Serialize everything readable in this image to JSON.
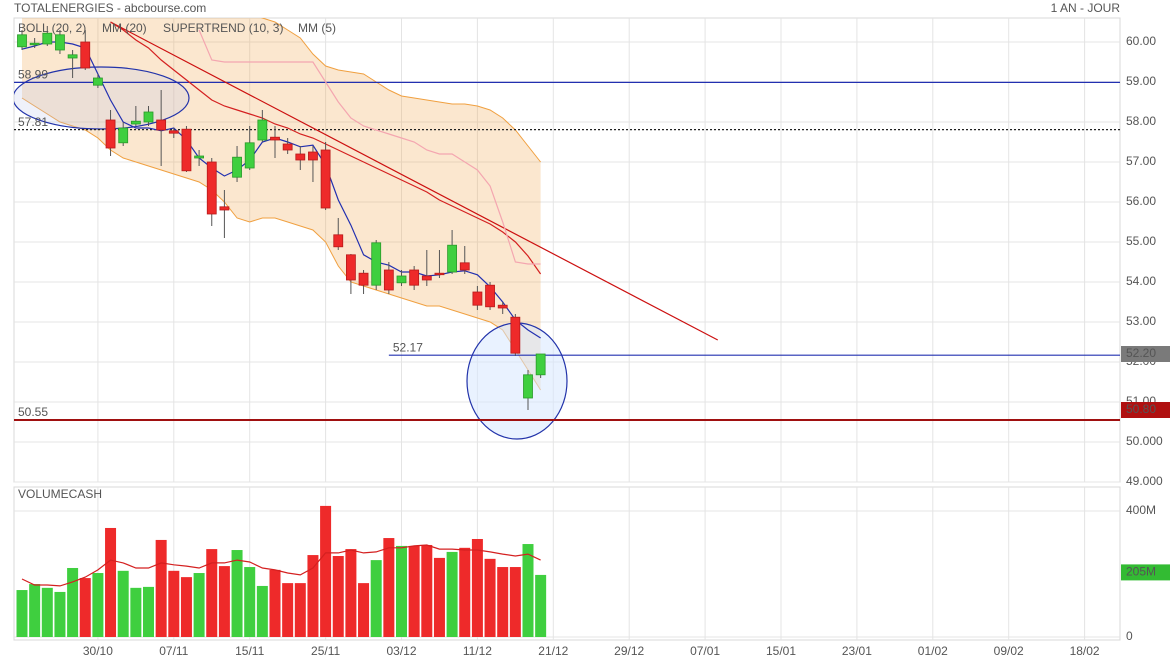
{
  "chart_data": {
    "type": "candlestick",
    "title": "TOTALENERGIES - abcbourse.com",
    "period": "1 AN - JOUR",
    "categories": [
      null,
      null,
      null,
      null,
      null,
      null,
      "30/10",
      null,
      null,
      null,
      null,
      null,
      "07/11",
      null,
      null,
      null,
      null,
      null,
      "15/11",
      null,
      null,
      null,
      null,
      null,
      "25/11",
      null,
      null,
      null,
      null,
      null,
      "03/12",
      null,
      null,
      null,
      null,
      null,
      "11/12",
      null,
      null,
      null,
      null,
      null,
      "21/12",
      null,
      null,
      null,
      null,
      null,
      "29/12",
      null,
      null,
      null,
      null,
      null,
      "07/01",
      null,
      null,
      null,
      null,
      null,
      "15/01",
      null,
      null,
      null,
      null,
      null,
      "23/01",
      null,
      null,
      null,
      null,
      null,
      "01/02",
      null,
      null,
      null,
      null,
      null,
      "09/02",
      null,
      null,
      null,
      null,
      null,
      "18/02",
      null,
      null
    ],
    "open": [
      59.88,
      59.93,
      59.95,
      59.8,
      59.6,
      60.0,
      58.92,
      58.05,
      57.48,
      57.95,
      58.0,
      58.05,
      57.78,
      57.82,
      57.1,
      57.0,
      55.88,
      56.62,
      56.85,
      57.55,
      57.62,
      57.45,
      57.2,
      57.25,
      57.3,
      55.18,
      54.68,
      54.22,
      53.92,
      54.3,
      53.98,
      54.3,
      54.15,
      54.22,
      54.25,
      54.48,
      53.75,
      53.92,
      53.42,
      53.12,
      51.1,
      51.68,
      null,
      null,
      null,
      null,
      null,
      null,
      null,
      null,
      null,
      null,
      null,
      null,
      null,
      null,
      null,
      null,
      null,
      null,
      null,
      null,
      null,
      null,
      null,
      null,
      null,
      null,
      null,
      null,
      null,
      null,
      null,
      null,
      null,
      null,
      null,
      null,
      null,
      null,
      null,
      null,
      null,
      null,
      null,
      null,
      null
    ],
    "high": [
      60.3,
      60.1,
      60.4,
      60.3,
      59.8,
      60.3,
      59.2,
      58.3,
      58.0,
      58.4,
      58.4,
      58.8,
      57.85,
      57.9,
      57.3,
      57.1,
      56.3,
      57.4,
      57.9,
      58.3,
      57.9,
      57.6,
      57.4,
      57.4,
      57.5,
      55.6,
      54.7,
      54.3,
      55.05,
      54.5,
      54.3,
      54.4,
      54.8,
      54.8,
      55.3,
      54.9,
      53.9,
      54.0,
      53.5,
      53.2,
      51.8,
      52.2,
      null,
      null,
      null,
      null,
      null,
      null,
      null,
      null,
      null,
      null,
      null,
      null,
      null,
      null,
      null,
      null,
      null,
      null,
      null,
      null,
      null,
      null,
      null,
      null,
      null,
      null,
      null,
      null,
      null,
      null,
      null,
      null,
      null,
      null,
      null,
      null,
      null,
      null,
      null,
      null,
      null,
      null,
      null,
      null,
      null
    ],
    "low": [
      59.8,
      59.85,
      59.9,
      59.7,
      59.1,
      59.3,
      58.85,
      57.15,
      57.4,
      57.9,
      57.9,
      56.9,
      57.6,
      56.75,
      56.9,
      55.4,
      55.1,
      56.5,
      56.8,
      57.5,
      57.1,
      57.2,
      56.8,
      56.5,
      55.8,
      54.8,
      53.7,
      53.7,
      53.8,
      53.7,
      53.9,
      53.8,
      53.9,
      54.1,
      54.2,
      54.2,
      53.3,
      53.3,
      53.2,
      52.15,
      50.8,
      51.6,
      null,
      null,
      null,
      null,
      null,
      null,
      null,
      null,
      null,
      null,
      null,
      null,
      null,
      null,
      null,
      null,
      null,
      null,
      null,
      null,
      null,
      null,
      null,
      null,
      null,
      null,
      null,
      null,
      null,
      null,
      null,
      null,
      null,
      null,
      null,
      null,
      null,
      null,
      null,
      null,
      null,
      null,
      null,
      null,
      null
    ],
    "close": [
      60.18,
      59.97,
      60.22,
      60.18,
      59.68,
      59.35,
      59.1,
      57.35,
      57.85,
      58.02,
      58.25,
      57.8,
      57.72,
      56.78,
      57.15,
      55.7,
      55.8,
      57.12,
      57.48,
      58.05,
      57.55,
      57.3,
      57.05,
      57.05,
      55.85,
      54.88,
      54.05,
      53.92,
      54.98,
      53.8,
      54.15,
      53.92,
      54.05,
      54.2,
      54.92,
      54.3,
      53.42,
      53.38,
      53.35,
      52.22,
      51.68,
      52.2,
      null,
      null,
      null,
      null,
      null,
      null,
      null,
      null,
      null,
      null,
      null,
      null,
      null,
      null,
      null,
      null,
      null,
      null,
      null,
      null,
      null,
      null,
      null,
      null,
      null,
      null,
      null,
      null,
      null,
      null,
      null,
      null,
      null,
      null,
      null,
      null,
      null,
      null,
      null,
      null,
      null,
      null,
      null,
      null,
      null
    ],
    "up_color": "#3fcf3f",
    "down_color": "#ee2a2a",
    "bollinger": {
      "name": "BOLL (20, 2)",
      "color": "#f0a040",
      "upper": [
        61.0,
        61.0,
        61.0,
        61.0,
        61.0,
        61.0,
        61.0,
        61.0,
        61.0,
        61.0,
        61.0,
        61.0,
        61.0,
        61.0,
        61.0,
        61.0,
        60.9,
        60.8,
        60.7,
        60.6,
        60.5,
        60.3,
        60.1,
        59.7,
        59.4,
        59.3,
        59.25,
        59.2,
        59.0,
        58.8,
        58.65,
        58.6,
        58.55,
        58.5,
        58.45,
        58.45,
        58.4,
        58.3,
        58.1,
        57.8,
        57.4,
        57.0,
        null,
        null,
        null,
        null,
        null,
        null,
        null,
        null,
        null,
        null,
        null,
        null,
        null,
        null,
        null,
        null,
        null,
        null,
        null,
        null,
        null,
        null,
        null,
        null,
        null,
        null,
        null,
        null,
        null,
        null,
        null,
        null,
        null,
        null,
        null,
        null,
        null,
        null,
        null,
        null,
        null,
        null,
        null,
        null,
        null
      ],
      "lower": [
        58.6,
        58.4,
        58.2,
        58.0,
        57.9,
        57.8,
        57.6,
        57.3,
        57.1,
        57.0,
        56.9,
        56.8,
        56.7,
        56.6,
        56.5,
        56.3,
        56.0,
        55.6,
        55.5,
        55.6,
        55.6,
        55.5,
        55.4,
        55.3,
        55.0,
        54.4,
        54.0,
        53.9,
        53.8,
        53.7,
        53.6,
        53.5,
        53.4,
        53.4,
        53.3,
        53.2,
        53.1,
        53.0,
        52.8,
        52.3,
        51.8,
        51.3,
        null,
        null,
        null,
        null,
        null,
        null,
        null,
        null,
        null,
        null,
        null,
        null,
        null,
        null,
        null,
        null,
        null,
        null,
        null,
        null,
        null,
        null,
        null,
        null,
        null,
        null,
        null,
        null,
        null,
        null,
        null,
        null,
        null,
        null,
        null,
        null,
        null,
        null,
        null,
        null,
        null,
        null,
        null,
        null,
        null
      ]
    },
    "series": [
      {
        "name": "MM (20)",
        "color": "#d42020",
        "values": [
          null,
          null,
          null,
          null,
          null,
          null,
          null,
          60.5,
          60.3,
          60.05,
          59.85,
          59.55,
          59.3,
          59.05,
          58.8,
          58.55,
          58.4,
          58.3,
          58.2,
          58.1,
          57.95,
          57.85,
          57.7,
          57.6,
          57.45,
          57.3,
          57.15,
          57.0,
          56.85,
          56.7,
          56.55,
          56.4,
          56.25,
          56.05,
          55.9,
          55.75,
          55.6,
          55.45,
          55.25,
          55.0,
          54.65,
          54.2,
          null,
          null,
          null,
          null,
          null,
          null,
          null,
          null,
          null,
          null,
          null,
          null,
          null,
          null,
          null,
          null,
          null,
          null,
          null,
          null,
          null,
          null,
          null,
          null,
          null,
          null,
          null,
          null,
          null,
          null,
          null,
          null,
          null,
          null,
          null,
          null,
          null,
          null,
          null,
          null,
          null,
          null,
          null,
          null,
          null
        ]
      },
      {
        "name": "SUPERTREND (10, 3)",
        "color": "#f4a6b0",
        "values": [
          null,
          null,
          null,
          null,
          null,
          null,
          null,
          null,
          null,
          null,
          null,
          null,
          null,
          null,
          60.3,
          59.55,
          59.5,
          59.5,
          59.5,
          59.5,
          59.5,
          59.5,
          59.5,
          59.5,
          59.0,
          58.5,
          58.1,
          57.9,
          57.8,
          57.7,
          57.6,
          57.5,
          57.3,
          57.2,
          57.2,
          57.0,
          56.8,
          56.4,
          55.5,
          54.5,
          54.45,
          54.45,
          null,
          null,
          null,
          null,
          null,
          null,
          null,
          null,
          null,
          null,
          null,
          null,
          null,
          null,
          null,
          null,
          null,
          null,
          null,
          null,
          null,
          null,
          null,
          null,
          null,
          null,
          null,
          null,
          null,
          null,
          null,
          null,
          null,
          null,
          null,
          null,
          null,
          null,
          null,
          null,
          null,
          null,
          null,
          null,
          null
        ]
      },
      {
        "name": "MM (5)",
        "color": "#2230b0",
        "values": [
          59.82,
          59.9,
          60.0,
          60.0,
          59.95,
          59.85,
          59.2,
          58.55,
          58.0,
          57.85,
          57.85,
          57.78,
          57.85,
          57.55,
          57.1,
          56.85,
          56.65,
          56.8,
          57.05,
          57.5,
          57.6,
          57.5,
          57.38,
          57.42,
          56.92,
          56.05,
          55.42,
          54.68,
          54.5,
          54.42,
          54.25,
          54.25,
          54.15,
          54.18,
          54.25,
          54.28,
          54.18,
          53.88,
          53.5,
          53.05,
          52.8,
          52.6,
          null,
          null,
          null,
          null,
          null,
          null,
          null,
          null,
          null,
          null,
          null,
          null,
          null,
          null,
          null,
          null,
          null,
          null,
          null,
          null,
          null,
          null,
          null,
          null,
          null,
          null,
          null,
          null,
          null,
          null,
          null,
          null,
          null,
          null,
          null,
          null,
          null,
          null,
          null,
          null,
          null,
          null,
          null,
          null,
          null
        ]
      }
    ],
    "trendline": {
      "color": "#cc1010",
      "points": [
        [
          7,
          60.5
        ],
        [
          55,
          52.55
        ]
      ]
    },
    "hlines": [
      {
        "value": 58.99,
        "label": "58.99",
        "color": "#2230b0",
        "dash": false,
        "start": 0
      },
      {
        "value": 57.81,
        "label": "57.81",
        "color": "#222222",
        "dash": true,
        "start": 0
      },
      {
        "value": 52.17,
        "label": "52.17",
        "color": "#2230b0",
        "dash": false,
        "start": 29
      },
      {
        "value": 50.55,
        "label": "50.55",
        "color": "#a01010",
        "dash": false,
        "start": 0
      }
    ],
    "price_tags": [
      {
        "value": 52.2,
        "label": "52.20",
        "color": "#7a7a7a"
      },
      {
        "value": 50.8,
        "label": "50.80",
        "color": "#b01010"
      }
    ],
    "ylim": [
      49,
      60.6
    ],
    "yticks": [
      {
        "value": 60,
        "label": "60.00"
      },
      {
        "value": 59,
        "label": "59.00"
      },
      {
        "value": 58,
        "label": "58.00"
      },
      {
        "value": 57,
        "label": "57.00"
      },
      {
        "value": 56,
        "label": "56.00"
      },
      {
        "value": 55,
        "label": "55.00"
      },
      {
        "value": 54,
        "label": "54.00"
      },
      {
        "value": 53,
        "label": "53.00"
      },
      {
        "value": 52,
        "label": "52.00"
      },
      {
        "value": 51,
        "label": "51.00"
      },
      {
        "value": 50,
        "label": "50.000"
      },
      {
        "value": 49,
        "label": "49.000"
      }
    ],
    "grid": true,
    "volume": {
      "title": "VOLUMECASH",
      "values": [
        149,
        168,
        156,
        143,
        219,
        187,
        203,
        346,
        210,
        156,
        159,
        308,
        210,
        190,
        203,
        279,
        225,
        276,
        222,
        162,
        213,
        171,
        171,
        260,
        416,
        257,
        279,
        171,
        244,
        314,
        289,
        289,
        292,
        251,
        270,
        283,
        311,
        248,
        222,
        222,
        295,
        197,
        null,
        null,
        null,
        null,
        null,
        null,
        null,
        null,
        null,
        null,
        null,
        null,
        null,
        null,
        null,
        null,
        null,
        null,
        null,
        null,
        null,
        null,
        null,
        null,
        null,
        null,
        null,
        null,
        null,
        null,
        null,
        null,
        null,
        null,
        null,
        null,
        null,
        null,
        null,
        null,
        null,
        null,
        null,
        null,
        null
      ],
      "ma": {
        "color": "#d42020",
        "values": [
          184,
          165,
          165,
          162,
          175,
          190,
          213,
          244,
          235,
          219,
          219,
          235,
          229,
          225,
          219,
          235,
          235,
          244,
          238,
          219,
          213,
          203,
          197,
          219,
          267,
          267,
          276,
          267,
          270,
          283,
          283,
          289,
          292,
          279,
          279,
          276,
          276,
          270,
          263,
          257,
          263,
          244,
          null,
          null,
          null,
          null,
          null,
          null,
          null,
          null,
          null,
          null,
          null,
          null,
          null,
          null,
          null,
          null,
          null,
          null,
          null,
          null,
          null,
          null,
          null,
          null,
          null,
          null,
          null,
          null,
          null,
          null,
          null,
          null,
          null,
          null,
          null,
          null,
          null,
          null,
          null,
          null,
          null,
          null,
          null,
          null,
          null
        ]
      },
      "ylim": [
        0,
        476
      ],
      "yticks": [
        0,
        {
          "value": 400,
          "label": "400M"
        }
      ],
      "tag": {
        "value": 205,
        "label": "205M",
        "color": "#33bb33"
      }
    }
  }
}
